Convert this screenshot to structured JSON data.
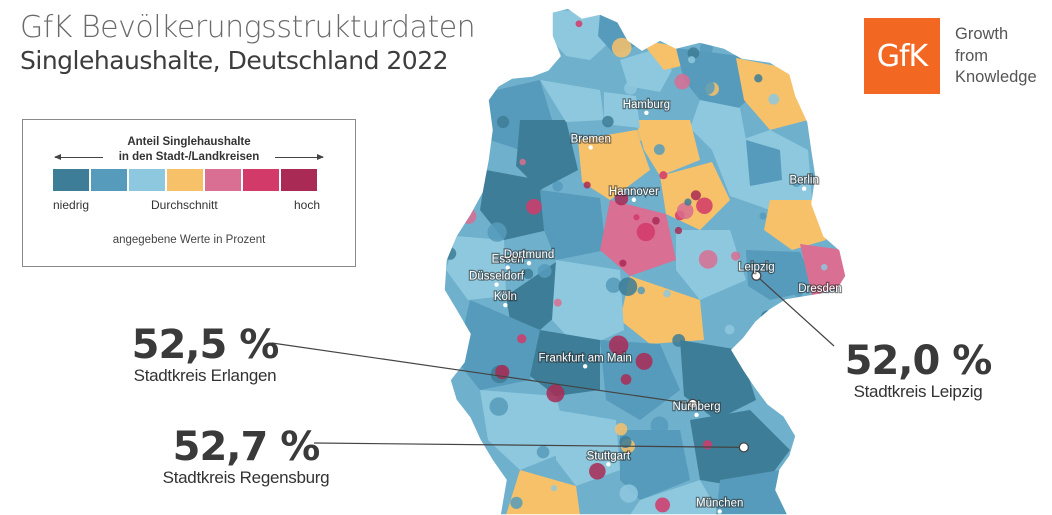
{
  "header": {
    "title": "GfK Bevölkerungsstrukturdaten",
    "subtitle": "Singlehaushalte, Deutschland 2022"
  },
  "legend": {
    "title_line1": "Anteil Singlehaushalte",
    "title_line2": "in den Stadt-/Landkreisen",
    "colors": [
      "#3d7d97",
      "#569bbb",
      "#8ec8de",
      "#f7c169",
      "#d96f92",
      "#d23a6a",
      "#a92a55"
    ],
    "low_label": "niedrig",
    "mid_label": "Durchschnitt",
    "high_label": "hoch",
    "note": "angegebene Werte in Prozent"
  },
  "logo": {
    "mark": "GfK",
    "tagline": [
      "Growth",
      "from",
      "Knowledge"
    ]
  },
  "cities": [
    {
      "name": "Hamburg",
      "lat": 53.55,
      "lon": 10.0
    },
    {
      "name": "Bremen",
      "lat": 53.08,
      "lon": 8.8
    },
    {
      "name": "Berlin",
      "lat": 52.52,
      "lon": 13.4
    },
    {
      "name": "Hannover",
      "lat": 52.37,
      "lon": 9.73
    },
    {
      "name": "Essen",
      "lat": 51.45,
      "lon": 7.01
    },
    {
      "name": "Dortmund",
      "lat": 51.51,
      "lon": 7.47
    },
    {
      "name": "Düsseldorf",
      "lat": 51.22,
      "lon": 6.77
    },
    {
      "name": "Köln",
      "lat": 50.94,
      "lon": 6.96
    },
    {
      "name": "Leipzig",
      "lat": 51.34,
      "lon": 12.37
    },
    {
      "name": "Dresden",
      "lat": 51.05,
      "lon": 13.74
    },
    {
      "name": "Frankfurt am Main",
      "lat": 50.11,
      "lon": 8.68
    },
    {
      "name": "Nürnberg",
      "lat": 49.45,
      "lon": 11.08
    },
    {
      "name": "Stuttgart",
      "lat": 48.78,
      "lon": 9.18
    },
    {
      "name": "München",
      "lat": 48.14,
      "lon": 11.58
    }
  ],
  "callouts": [
    {
      "value": "52,5 %",
      "caption": "Stadtkreis Erlangen",
      "lat": 49.6,
      "lon": 11.0
    },
    {
      "value": "52,7 %",
      "caption": "Stadtkreis Regensburg",
      "lat": 49.01,
      "lon": 12.1
    },
    {
      "value": "52,0 %",
      "caption": "Stadtkreis Leipzig",
      "lat": 51.34,
      "lon": 12.37
    }
  ]
}
